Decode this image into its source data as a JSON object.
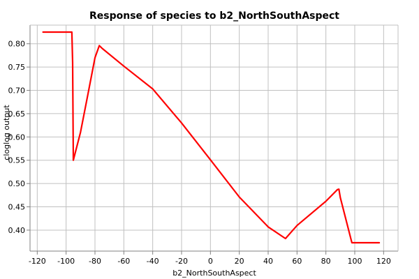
{
  "chart_data": {
    "type": "line",
    "title": "Response of species to b2_NorthSouthAspect",
    "xlabel": "b2_NorthSouthAspect",
    "ylabel": "cloglog output",
    "xlim": [
      -125,
      130
    ],
    "ylim": [
      0.355,
      0.84
    ],
    "xticks": [
      -120,
      -100,
      -80,
      -60,
      -40,
      -20,
      0,
      20,
      40,
      60,
      80,
      100,
      120
    ],
    "yticks": [
      0.4,
      0.45,
      0.5,
      0.55,
      0.6,
      0.65,
      0.7,
      0.75,
      0.8
    ],
    "ytick_labels": [
      "0.40",
      "0.45",
      "0.50",
      "0.55",
      "0.60",
      "0.65",
      "0.70",
      "0.75",
      "0.80"
    ],
    "grid": true,
    "series": [
      {
        "color": "#ff0000",
        "x": [
          -116,
          -96,
          -95.5,
          -95,
          -90,
          -85,
          -80,
          -77,
          -75,
          -60,
          -40,
          -20,
          0,
          20,
          40,
          52,
          60,
          80,
          88,
          89,
          90,
          98,
          100,
          117
        ],
        "y": [
          0.825,
          0.825,
          0.76,
          0.55,
          0.61,
          0.69,
          0.77,
          0.796,
          0.79,
          0.752,
          0.703,
          0.63,
          0.551,
          0.471,
          0.407,
          0.382,
          0.41,
          0.462,
          0.487,
          0.488,
          0.47,
          0.373,
          0.373,
          0.373
        ]
      }
    ]
  }
}
